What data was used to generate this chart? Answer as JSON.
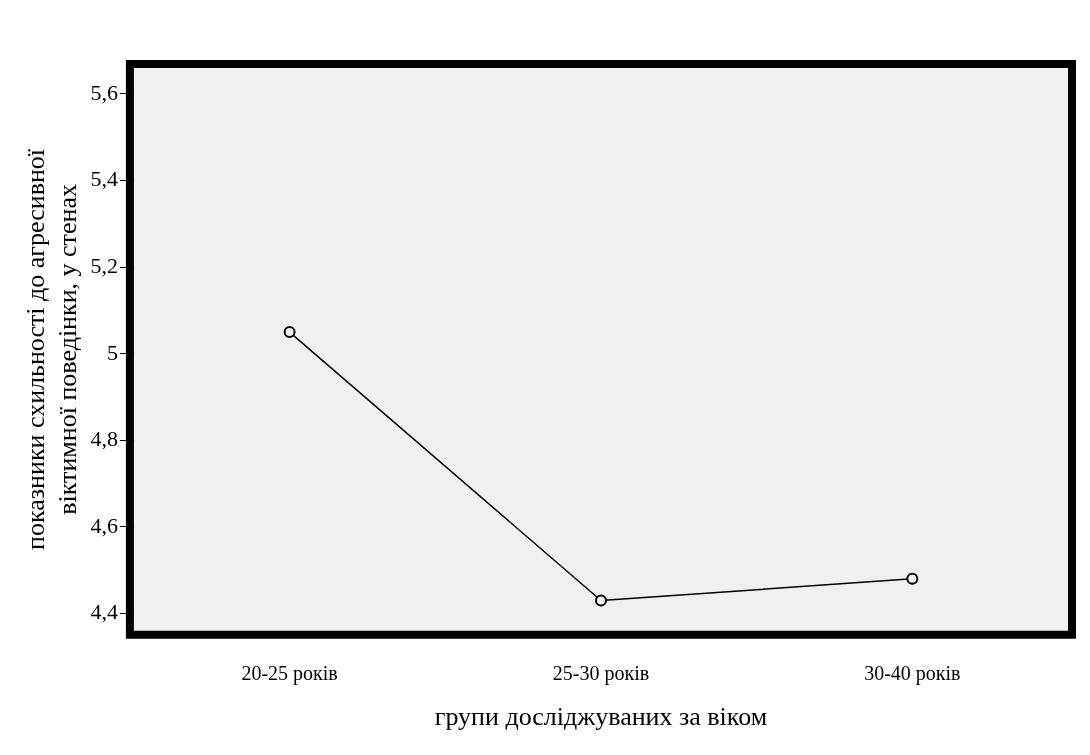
{
  "chart_data": {
    "type": "line",
    "xlabel": "групи досліджуваних за віком",
    "ylabel": "показники схильності до агресивної віктимної поведінки, у стенах",
    "categories": [
      "20-25 років",
      "25-30 років",
      "30-40 років"
    ],
    "series": [
      {
        "color": "#000000",
        "values": [
          5.05,
          4.43,
          4.48
        ]
      }
    ],
    "ylim": [
      4.36,
      5.66
    ],
    "yticks": [
      {
        "value": 4.4,
        "label": "4,4"
      },
      {
        "value": 4.6,
        "label": "4,6"
      },
      {
        "value": 4.8,
        "label": "4,8"
      },
      5,
      {
        "value": 5.2,
        "label": "5,2"
      },
      {
        "value": 5.4,
        "label": "5,4"
      },
      {
        "value": 5.6,
        "label": "5,6"
      }
    ],
    "grid": false,
    "legend": false,
    "marker": "circle",
    "line_style": "solid"
  }
}
